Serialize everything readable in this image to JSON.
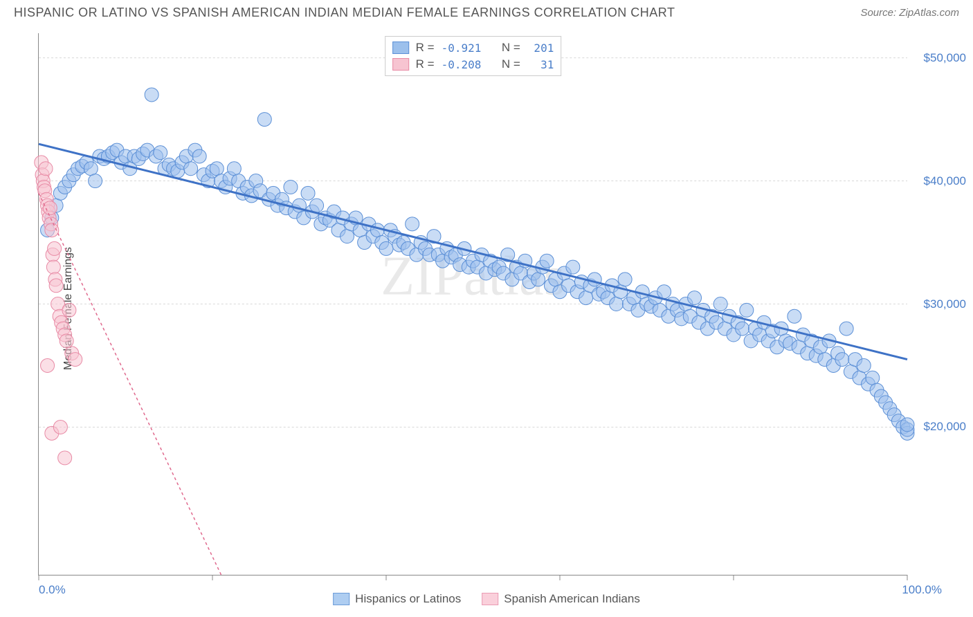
{
  "title": "HISPANIC OR LATINO VS SPANISH AMERICAN INDIAN MEDIAN FEMALE EARNINGS CORRELATION CHART",
  "source_label": "Source: ZipAtlas.com",
  "watermark": "ZIPatlas",
  "ylabel": "Median Female Earnings",
  "chart": {
    "type": "scatter",
    "xlim": [
      0,
      100
    ],
    "ylim": [
      8000,
      52000
    ],
    "x_ticks": [
      0,
      20,
      40,
      60,
      80,
      100
    ],
    "x_tick_labels_shown": {
      "0": "0.0%",
      "100": "100.0%"
    },
    "y_ticks": [
      20000,
      30000,
      40000,
      50000
    ],
    "y_tick_labels": [
      "$20,000",
      "$30,000",
      "$40,000",
      "$50,000"
    ],
    "grid_color": "#d8d8d8",
    "background": "#ffffff",
    "marker_radius": 10,
    "marker_opacity": 0.55,
    "series": [
      {
        "name": "Hispanics or Latinos",
        "fill": "#9cc0ec",
        "stroke": "#5b8fd6",
        "line_color": "#3e72c6",
        "line_width": 3,
        "line_dash": "none",
        "R": "-0.921",
        "N": "201",
        "regression": {
          "x1": 0,
          "y1": 43000,
          "x2": 100,
          "y2": 25500
        },
        "points": [
          [
            1,
            36000
          ],
          [
            1.5,
            37000
          ],
          [
            2,
            38000
          ],
          [
            2.5,
            39000
          ],
          [
            3,
            39500
          ],
          [
            3.5,
            40000
          ],
          [
            4,
            40500
          ],
          [
            4.5,
            41000
          ],
          [
            5,
            41200
          ],
          [
            5.5,
            41500
          ],
          [
            6,
            41000
          ],
          [
            6.5,
            40000
          ],
          [
            7,
            42000
          ],
          [
            7.5,
            41800
          ],
          [
            8,
            42000
          ],
          [
            8.5,
            42300
          ],
          [
            9,
            42500
          ],
          [
            9.5,
            41500
          ],
          [
            10,
            42000
          ],
          [
            10.5,
            41000
          ],
          [
            11,
            42000
          ],
          [
            11.5,
            41800
          ],
          [
            12,
            42200
          ],
          [
            12.5,
            42500
          ],
          [
            13,
            47000
          ],
          [
            13.5,
            42000
          ],
          [
            14,
            42300
          ],
          [
            14.5,
            41000
          ],
          [
            15,
            41300
          ],
          [
            15.5,
            41000
          ],
          [
            16,
            40800
          ],
          [
            16.5,
            41500
          ],
          [
            17,
            42000
          ],
          [
            17.5,
            41000
          ],
          [
            18,
            42500
          ],
          [
            18.5,
            42000
          ],
          [
            19,
            40500
          ],
          [
            19.5,
            40000
          ],
          [
            20,
            40800
          ],
          [
            20.5,
            41000
          ],
          [
            21,
            40000
          ],
          [
            21.5,
            39500
          ],
          [
            22,
            40200
          ],
          [
            22.5,
            41000
          ],
          [
            23,
            40000
          ],
          [
            23.5,
            39000
          ],
          [
            24,
            39500
          ],
          [
            24.5,
            38800
          ],
          [
            25,
            40000
          ],
          [
            25.5,
            39200
          ],
          [
            26,
            45000
          ],
          [
            26.5,
            38500
          ],
          [
            27,
            39000
          ],
          [
            27.5,
            38000
          ],
          [
            28,
            38500
          ],
          [
            28.5,
            37800
          ],
          [
            29,
            39500
          ],
          [
            29.5,
            37500
          ],
          [
            30,
            38000
          ],
          [
            30.5,
            37000
          ],
          [
            31,
            39000
          ],
          [
            31.5,
            37500
          ],
          [
            32,
            38000
          ],
          [
            32.5,
            36500
          ],
          [
            33,
            37000
          ],
          [
            33.5,
            36800
          ],
          [
            34,
            37500
          ],
          [
            34.5,
            36000
          ],
          [
            35,
            37000
          ],
          [
            35.5,
            35500
          ],
          [
            36,
            36500
          ],
          [
            36.5,
            37000
          ],
          [
            37,
            36000
          ],
          [
            37.5,
            35000
          ],
          [
            38,
            36500
          ],
          [
            38.5,
            35500
          ],
          [
            39,
            36000
          ],
          [
            39.5,
            35000
          ],
          [
            40,
            34500
          ],
          [
            40.5,
            36000
          ],
          [
            41,
            35500
          ],
          [
            41.5,
            34800
          ],
          [
            42,
            35000
          ],
          [
            42.5,
            34500
          ],
          [
            43,
            36500
          ],
          [
            43.5,
            34000
          ],
          [
            44,
            35000
          ],
          [
            44.5,
            34500
          ],
          [
            45,
            34000
          ],
          [
            45.5,
            35500
          ],
          [
            46,
            34000
          ],
          [
            46.5,
            33500
          ],
          [
            47,
            34500
          ],
          [
            47.5,
            33800
          ],
          [
            48,
            34000
          ],
          [
            48.5,
            33200
          ],
          [
            49,
            34500
          ],
          [
            49.5,
            33000
          ],
          [
            50,
            33500
          ],
          [
            50.5,
            33000
          ],
          [
            51,
            34000
          ],
          [
            51.5,
            32500
          ],
          [
            52,
            33500
          ],
          [
            52.5,
            32800
          ],
          [
            53,
            33000
          ],
          [
            53.5,
            32500
          ],
          [
            54,
            34000
          ],
          [
            54.5,
            32000
          ],
          [
            55,
            33000
          ],
          [
            55.5,
            32500
          ],
          [
            56,
            33500
          ],
          [
            56.5,
            31800
          ],
          [
            57,
            32500
          ],
          [
            57.5,
            32000
          ],
          [
            58,
            33000
          ],
          [
            58.5,
            33500
          ],
          [
            59,
            31500
          ],
          [
            59.5,
            32000
          ],
          [
            60,
            31000
          ],
          [
            60.5,
            32500
          ],
          [
            61,
            31500
          ],
          [
            61.5,
            33000
          ],
          [
            62,
            31000
          ],
          [
            62.5,
            31800
          ],
          [
            63,
            30500
          ],
          [
            63.5,
            31500
          ],
          [
            64,
            32000
          ],
          [
            64.5,
            30800
          ],
          [
            65,
            31000
          ],
          [
            65.5,
            30500
          ],
          [
            66,
            31500
          ],
          [
            66.5,
            30000
          ],
          [
            67,
            31000
          ],
          [
            67.5,
            32000
          ],
          [
            68,
            30000
          ],
          [
            68.5,
            30500
          ],
          [
            69,
            29500
          ],
          [
            69.5,
            31000
          ],
          [
            70,
            30000
          ],
          [
            70.5,
            29800
          ],
          [
            71,
            30500
          ],
          [
            71.5,
            29500
          ],
          [
            72,
            31000
          ],
          [
            72.5,
            29000
          ],
          [
            73,
            30000
          ],
          [
            73.5,
            29500
          ],
          [
            74,
            28800
          ],
          [
            74.5,
            30000
          ],
          [
            75,
            29000
          ],
          [
            75.5,
            30500
          ],
          [
            76,
            28500
          ],
          [
            76.5,
            29500
          ],
          [
            77,
            28000
          ],
          [
            77.5,
            29000
          ],
          [
            78,
            28500
          ],
          [
            78.5,
            30000
          ],
          [
            79,
            28000
          ],
          [
            79.5,
            29000
          ],
          [
            80,
            27500
          ],
          [
            80.5,
            28500
          ],
          [
            81,
            28000
          ],
          [
            81.5,
            29500
          ],
          [
            82,
            27000
          ],
          [
            82.5,
            28000
          ],
          [
            83,
            27500
          ],
          [
            83.5,
            28500
          ],
          [
            84,
            27000
          ],
          [
            84.5,
            27800
          ],
          [
            85,
            26500
          ],
          [
            85.5,
            28000
          ],
          [
            86,
            27000
          ],
          [
            86.5,
            26800
          ],
          [
            87,
            29000
          ],
          [
            87.5,
            26500
          ],
          [
            88,
            27500
          ],
          [
            88.5,
            26000
          ],
          [
            89,
            27000
          ],
          [
            89.5,
            25800
          ],
          [
            90,
            26500
          ],
          [
            90.5,
            25500
          ],
          [
            91,
            27000
          ],
          [
            91.5,
            25000
          ],
          [
            92,
            26000
          ],
          [
            92.5,
            25500
          ],
          [
            93,
            28000
          ],
          [
            93.5,
            24500
          ],
          [
            94,
            25500
          ],
          [
            94.5,
            24000
          ],
          [
            95,
            25000
          ],
          [
            95.5,
            23500
          ],
          [
            96,
            24000
          ],
          [
            96.5,
            23000
          ],
          [
            97,
            22500
          ],
          [
            97.5,
            22000
          ],
          [
            98,
            21500
          ],
          [
            98.5,
            21000
          ],
          [
            99,
            20500
          ],
          [
            99.5,
            20000
          ],
          [
            100,
            19500
          ],
          [
            100,
            19800
          ],
          [
            100,
            20200
          ]
        ]
      },
      {
        "name": "Spanish American Indians",
        "fill": "#f7c4d1",
        "stroke": "#e88aa5",
        "line_color": "#e06a8e",
        "line_width": 1.5,
        "line_dash": "4 4",
        "R": "-0.208",
        "N": "31",
        "regression": {
          "x1": 0,
          "y1": 39000,
          "x2": 21,
          "y2": 8000
        },
        "points": [
          [
            0.3,
            41500
          ],
          [
            0.4,
            40500
          ],
          [
            0.5,
            40000
          ],
          [
            0.6,
            39500
          ],
          [
            0.7,
            39200
          ],
          [
            0.8,
            41000
          ],
          [
            0.9,
            38500
          ],
          [
            1.0,
            38000
          ],
          [
            1.1,
            37500
          ],
          [
            1.2,
            37000
          ],
          [
            1.3,
            37800
          ],
          [
            1.4,
            36500
          ],
          [
            1.5,
            36000
          ],
          [
            1.6,
            34000
          ],
          [
            1.7,
            33000
          ],
          [
            1.8,
            34500
          ],
          [
            1.9,
            32000
          ],
          [
            2.0,
            31500
          ],
          [
            2.2,
            30000
          ],
          [
            2.4,
            29000
          ],
          [
            2.6,
            28500
          ],
          [
            2.8,
            28000
          ],
          [
            3.0,
            27500
          ],
          [
            3.2,
            27000
          ],
          [
            3.5,
            29500
          ],
          [
            3.8,
            26000
          ],
          [
            4.2,
            25500
          ],
          [
            1.0,
            25000
          ],
          [
            1.5,
            19500
          ],
          [
            2.5,
            20000
          ],
          [
            3.0,
            17500
          ]
        ]
      }
    ]
  },
  "bottom_legend": [
    {
      "label": "Hispanics or Latinos",
      "fill": "#aecdf1",
      "stroke": "#6b9bd8"
    },
    {
      "label": "Spanish American Indians",
      "fill": "#fad0db",
      "stroke": "#ea9bb3"
    }
  ]
}
